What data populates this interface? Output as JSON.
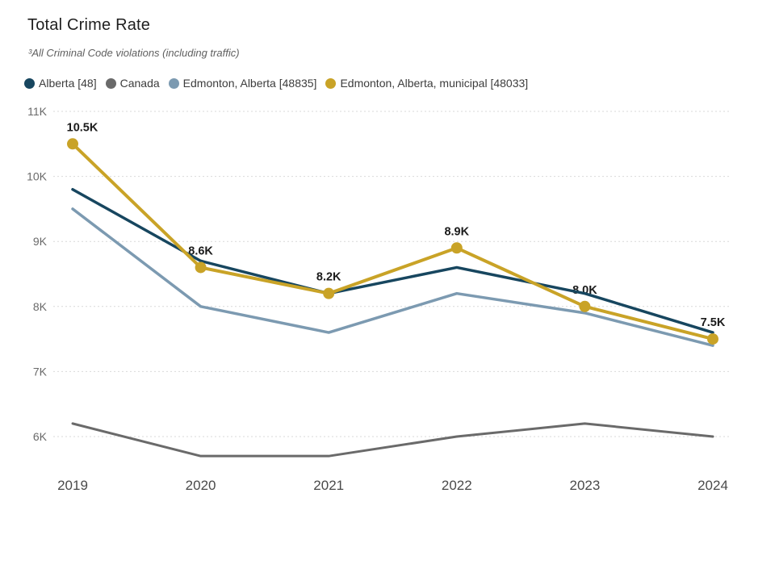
{
  "header": {
    "title": "Total Crime Rate",
    "subtitle": "³All Criminal Code violations (including traffic)"
  },
  "colors": {
    "alberta": "#17465F",
    "canada": "#6A6A6A",
    "edmonton": "#7C9AB1",
    "edmonton_municipal": "#C9A327",
    "gridline": "#D9D9D9",
    "axis_text": "#6A6A6A",
    "data_label_text": "#1C1C1C",
    "background": "#FFFFFF"
  },
  "chart_data": {
    "type": "line",
    "title": "Total Crime Rate",
    "subtitle": "³All Criminal Code violations (including traffic)",
    "legend_position": "top",
    "grid": "horizontal dotted",
    "x_labels": [
      "2019",
      "2020",
      "2021",
      "2022",
      "2023",
      "2024"
    ],
    "ylim": [
      6000,
      11000
    ],
    "y_ticks": [
      {
        "value": 6000,
        "label": "6K"
      },
      {
        "value": 7000,
        "label": "7K"
      },
      {
        "value": 8000,
        "label": "8K"
      },
      {
        "value": 9000,
        "label": "9K"
      },
      {
        "value": 10000,
        "label": "10K"
      },
      {
        "value": 11000,
        "label": "11K"
      }
    ],
    "series": [
      {
        "name": "Alberta [48]",
        "color": "#17465F",
        "markers": false,
        "values": [
          9800,
          8700,
          8200,
          8600,
          8200,
          7600
        ]
      },
      {
        "name": "Canada",
        "color": "#6A6A6A",
        "markers": false,
        "values": [
          6200,
          5700,
          5700,
          6000,
          6200,
          6000
        ]
      },
      {
        "name": "Edmonton, Alberta [48835]",
        "color": "#7C9AB1",
        "markers": false,
        "values": [
          9500,
          8000,
          7600,
          8200,
          7900,
          7400
        ]
      },
      {
        "name": "Edmonton, Alberta, municipal [48033]",
        "color": "#C9A327",
        "markers": true,
        "values": [
          10500,
          8600,
          8200,
          8900,
          8000,
          7500
        ],
        "data_labels": [
          "10.5K",
          "8.6K",
          "8.2K",
          "8.9K",
          "8.0K",
          "7.5K"
        ]
      }
    ]
  }
}
